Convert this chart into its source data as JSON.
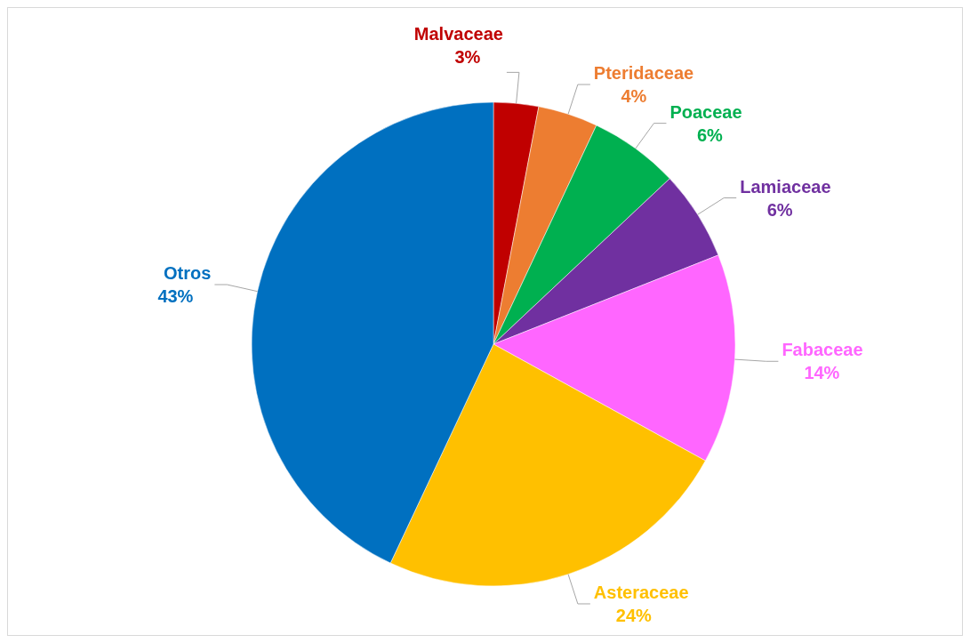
{
  "chart_data": {
    "type": "pie",
    "categories": [
      "Malvaceae",
      "Pteridaceae",
      "Poaceae",
      "Lamiaceae",
      "Fabaceae",
      "Asteraceae",
      "Otros"
    ],
    "values": [
      3,
      4,
      6,
      6,
      14,
      24,
      43
    ],
    "value_labels": [
      "3%",
      "4%",
      "6%",
      "6%",
      "14%",
      "24%",
      "43%"
    ],
    "colors": [
      "#c00000",
      "#ed7d31",
      "#00b050",
      "#7030a0",
      "#ff66ff",
      "#ffc000",
      "#0070c0"
    ],
    "legend": false
  }
}
